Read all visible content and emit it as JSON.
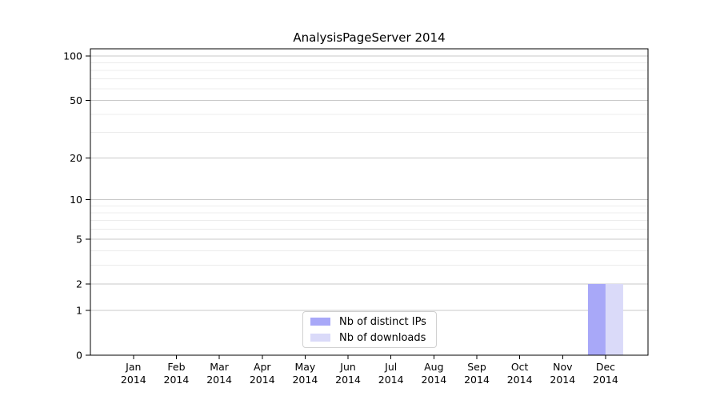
{
  "title": "AnalysisPageServer 2014",
  "chart_data": {
    "type": "bar",
    "title": "AnalysisPageServer 2014",
    "xlabel": "",
    "ylabel": "",
    "categories": [
      "Jan 2014",
      "Feb 2014",
      "Mar 2014",
      "Apr 2014",
      "May 2014",
      "Jun 2014",
      "Jul 2014",
      "Aug 2014",
      "Sep 2014",
      "Oct 2014",
      "Nov 2014",
      "Dec 2014"
    ],
    "series": [
      {
        "name": "Nb of distinct IPs",
        "color": "#a8a8f8",
        "values": [
          0,
          0,
          0,
          0,
          0,
          0,
          0,
          0,
          0,
          0,
          0,
          2
        ]
      },
      {
        "name": "Nb of downloads",
        "color": "#dadaf9",
        "values": [
          0,
          0,
          0,
          0,
          0,
          0,
          0,
          0,
          0,
          0,
          0,
          2
        ]
      }
    ],
    "scale": "log1p",
    "ylim": [
      0,
      110
    ],
    "y_ticks": [
      0,
      1,
      2,
      5,
      10,
      20,
      50,
      100
    ],
    "minor_gridlines": [
      3,
      4,
      6,
      7,
      8,
      9,
      30,
      40,
      60,
      70,
      80,
      90
    ],
    "grid": true,
    "legend_position": "bottom-center",
    "colors": {
      "frame": "#000000",
      "major_grid": "#c9c9c9",
      "minor_grid": "#ececec",
      "tick_text": "#000000",
      "legend_border": "#d0d0d0"
    }
  }
}
